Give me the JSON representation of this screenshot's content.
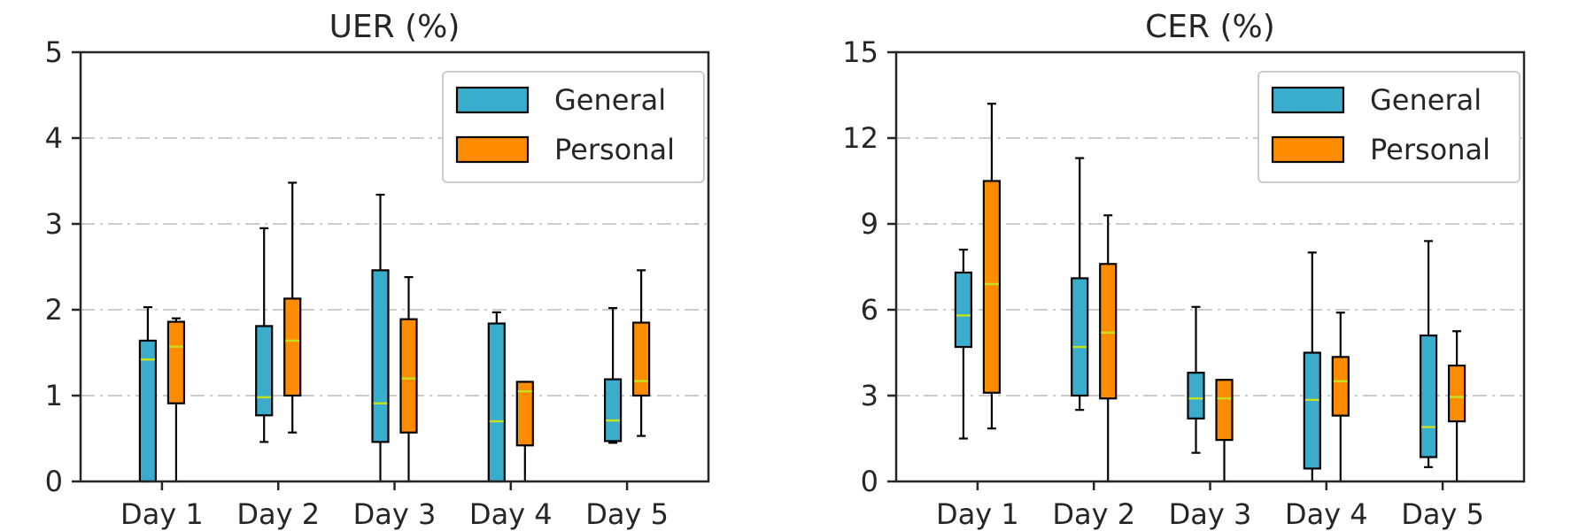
{
  "chart_data": [
    {
      "type": "box",
      "title": "UER (%)",
      "categories": [
        "Day 1",
        "Day 2",
        "Day 3",
        "Day 4",
        "Day 5"
      ],
      "ylim": [
        0,
        5
      ],
      "yticks": [
        0,
        1,
        2,
        3,
        4,
        5
      ],
      "ytick_labels": [
        "0",
        "1",
        "2",
        "3",
        "4",
        "5"
      ],
      "grid": "horizontal dash-dot",
      "legend_position": "top-right",
      "series": [
        {
          "name": "General",
          "color": "#3aaccc",
          "boxes": [
            {
              "whislo": 0.0,
              "q1": 0.0,
              "med": 1.42,
              "q3": 1.64,
              "whishi": 2.03
            },
            {
              "whislo": 0.46,
              "q1": 0.77,
              "med": 0.98,
              "q3": 1.81,
              "whishi": 2.95
            },
            {
              "whislo": 0.0,
              "q1": 0.46,
              "med": 0.91,
              "q3": 2.46,
              "whishi": 3.34
            },
            {
              "whislo": 0.0,
              "q1": 0.0,
              "med": 0.7,
              "q3": 1.84,
              "whishi": 1.97
            },
            {
              "whislo": 0.45,
              "q1": 0.47,
              "med": 0.71,
              "q3": 1.19,
              "whishi": 2.02
            }
          ]
        },
        {
          "name": "Personal",
          "color": "#ff8c00",
          "boxes": [
            {
              "whislo": 0.0,
              "q1": 0.91,
              "med": 1.57,
              "q3": 1.86,
              "whishi": 1.9
            },
            {
              "whislo": 0.57,
              "q1": 1.0,
              "med": 1.64,
              "q3": 2.13,
              "whishi": 3.48
            },
            {
              "whislo": 0.0,
              "q1": 0.57,
              "med": 1.2,
              "q3": 1.89,
              "whishi": 2.38
            },
            {
              "whislo": 0.0,
              "q1": 0.42,
              "med": 1.05,
              "q3": 1.16,
              "whishi": 1.16
            },
            {
              "whislo": 0.53,
              "q1": 1.0,
              "med": 1.17,
              "q3": 1.85,
              "whishi": 2.46
            }
          ]
        }
      ]
    },
    {
      "type": "box",
      "title": "CER (%)",
      "categories": [
        "Day 1",
        "Day 2",
        "Day 3",
        "Day 4",
        "Day 5"
      ],
      "ylim": [
        0,
        15
      ],
      "yticks": [
        0,
        3,
        6,
        9,
        12,
        15
      ],
      "ytick_labels": [
        "0",
        "3",
        "6",
        "9",
        "12",
        "15"
      ],
      "grid": "horizontal dash-dot",
      "legend_position": "top-right",
      "series": [
        {
          "name": "General",
          "color": "#3aaccc",
          "boxes": [
            {
              "whislo": 1.5,
              "q1": 4.7,
              "med": 5.8,
              "q3": 7.3,
              "whishi": 8.1
            },
            {
              "whislo": 2.5,
              "q1": 3.0,
              "med": 4.7,
              "q3": 7.1,
              "whishi": 11.3
            },
            {
              "whislo": 1.0,
              "q1": 2.2,
              "med": 2.9,
              "q3": 3.8,
              "whishi": 6.1
            },
            {
              "whislo": 0.0,
              "q1": 0.45,
              "med": 2.85,
              "q3": 4.5,
              "whishi": 8.0
            },
            {
              "whislo": 0.5,
              "q1": 0.85,
              "med": 1.9,
              "q3": 5.1,
              "whishi": 8.4
            }
          ]
        },
        {
          "name": "Personal",
          "color": "#ff8c00",
          "boxes": [
            {
              "whislo": 1.85,
              "q1": 3.1,
              "med": 6.9,
              "q3": 10.5,
              "whishi": 13.2
            },
            {
              "whislo": 0.0,
              "q1": 2.9,
              "med": 5.2,
              "q3": 7.6,
              "whishi": 9.3
            },
            {
              "whislo": 0.0,
              "q1": 1.45,
              "med": 2.9,
              "q3": 3.55,
              "whishi": 3.55
            },
            {
              "whislo": 0.0,
              "q1": 2.3,
              "med": 3.5,
              "q3": 4.35,
              "whishi": 5.9
            },
            {
              "whislo": 0.0,
              "q1": 2.1,
              "med": 2.95,
              "q3": 4.05,
              "whishi": 5.25
            }
          ]
        }
      ]
    }
  ]
}
